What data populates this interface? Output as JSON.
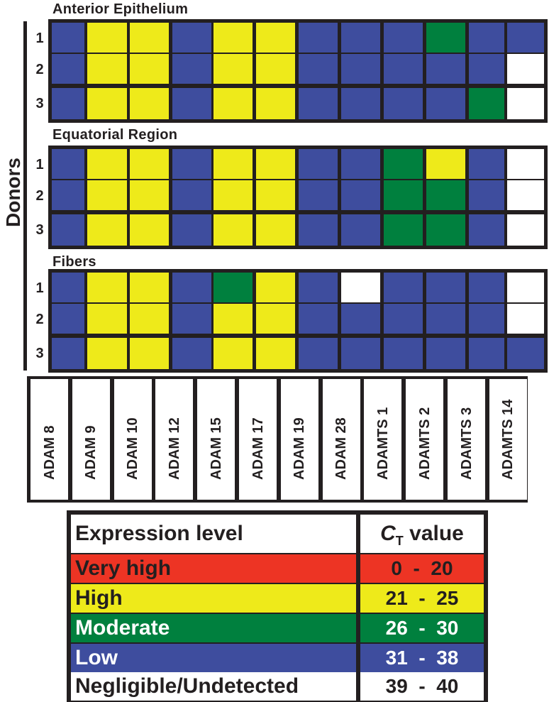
{
  "chart_data": {
    "type": "heatmap",
    "colors": {
      "very_high": "#ed3424",
      "high": "#eeea1a",
      "moderate": "#00803e",
      "low": "#3e4d9e",
      "negligible": "#ffffff"
    },
    "y_title": "Donors",
    "genes": [
      "ADAM 8",
      "ADAM 9",
      "ADAM 10",
      "ADAM 12",
      "ADAM 15",
      "ADAM 17",
      "ADAM 19",
      "ADAM 28",
      "ADAMTS 1",
      "ADAMTS 2",
      "ADAMTS 3",
      "ADAMTS 14"
    ],
    "sections": [
      {
        "title": "Anterior Epithelium",
        "donors": [
          {
            "label": "1",
            "levels": [
              "low",
              "high",
              "high",
              "low",
              "high",
              "high",
              "low",
              "low",
              "low",
              "moderate",
              "low",
              "low"
            ]
          },
          {
            "label": "2",
            "levels": [
              "low",
              "high",
              "high",
              "low",
              "high",
              "high",
              "low",
              "low",
              "low",
              "low",
              "low",
              "negligible"
            ]
          },
          {
            "label": "3",
            "levels": [
              "low",
              "high",
              "high",
              "low",
              "high",
              "high",
              "low",
              "low",
              "low",
              "low",
              "moderate",
              "negligible"
            ]
          }
        ]
      },
      {
        "title": "Equatorial Region",
        "donors": [
          {
            "label": "1",
            "levels": [
              "low",
              "high",
              "high",
              "low",
              "high",
              "high",
              "low",
              "low",
              "moderate",
              "high",
              "low",
              "negligible"
            ]
          },
          {
            "label": "2",
            "levels": [
              "low",
              "high",
              "high",
              "low",
              "high",
              "high",
              "low",
              "low",
              "moderate",
              "moderate",
              "low",
              "negligible"
            ]
          },
          {
            "label": "3",
            "levels": [
              "low",
              "high",
              "high",
              "low",
              "high",
              "high",
              "low",
              "low",
              "moderate",
              "moderate",
              "low",
              "negligible"
            ]
          }
        ]
      },
      {
        "title": "Fibers",
        "donors": [
          {
            "label": "1",
            "levels": [
              "low",
              "high",
              "high",
              "low",
              "moderate",
              "high",
              "low",
              "negligible",
              "low",
              "low",
              "low",
              "negligible"
            ]
          },
          {
            "label": "2",
            "levels": [
              "low",
              "high",
              "high",
              "low",
              "high",
              "high",
              "low",
              "low",
              "low",
              "low",
              "low",
              "negligible"
            ]
          },
          {
            "label": "3",
            "levels": [
              "low",
              "high",
              "high",
              "low",
              "high",
              "high",
              "low",
              "low",
              "low",
              "low",
              "low",
              "low"
            ]
          }
        ]
      }
    ],
    "legend": {
      "header_level": "Expression level",
      "header_value_c": "C",
      "header_value_sub": "T",
      "header_value_rest": " value",
      "rows": [
        {
          "key": "very_high",
          "label": "Very high",
          "range": "0  -  20",
          "text_color": "#231f20"
        },
        {
          "key": "high",
          "label": "High",
          "range": "21  -  25",
          "text_color": "#231f20"
        },
        {
          "key": "moderate",
          "label": "Moderate",
          "range": "26  -  30",
          "text_color": "#ffffff"
        },
        {
          "key": "low",
          "label": "Low",
          "range": "31  -  38",
          "text_color": "#ffffff"
        },
        {
          "key": "negligible",
          "label": "Negligible/Undetected",
          "range": "39  -  40",
          "text_color": "#231f20"
        }
      ]
    }
  }
}
